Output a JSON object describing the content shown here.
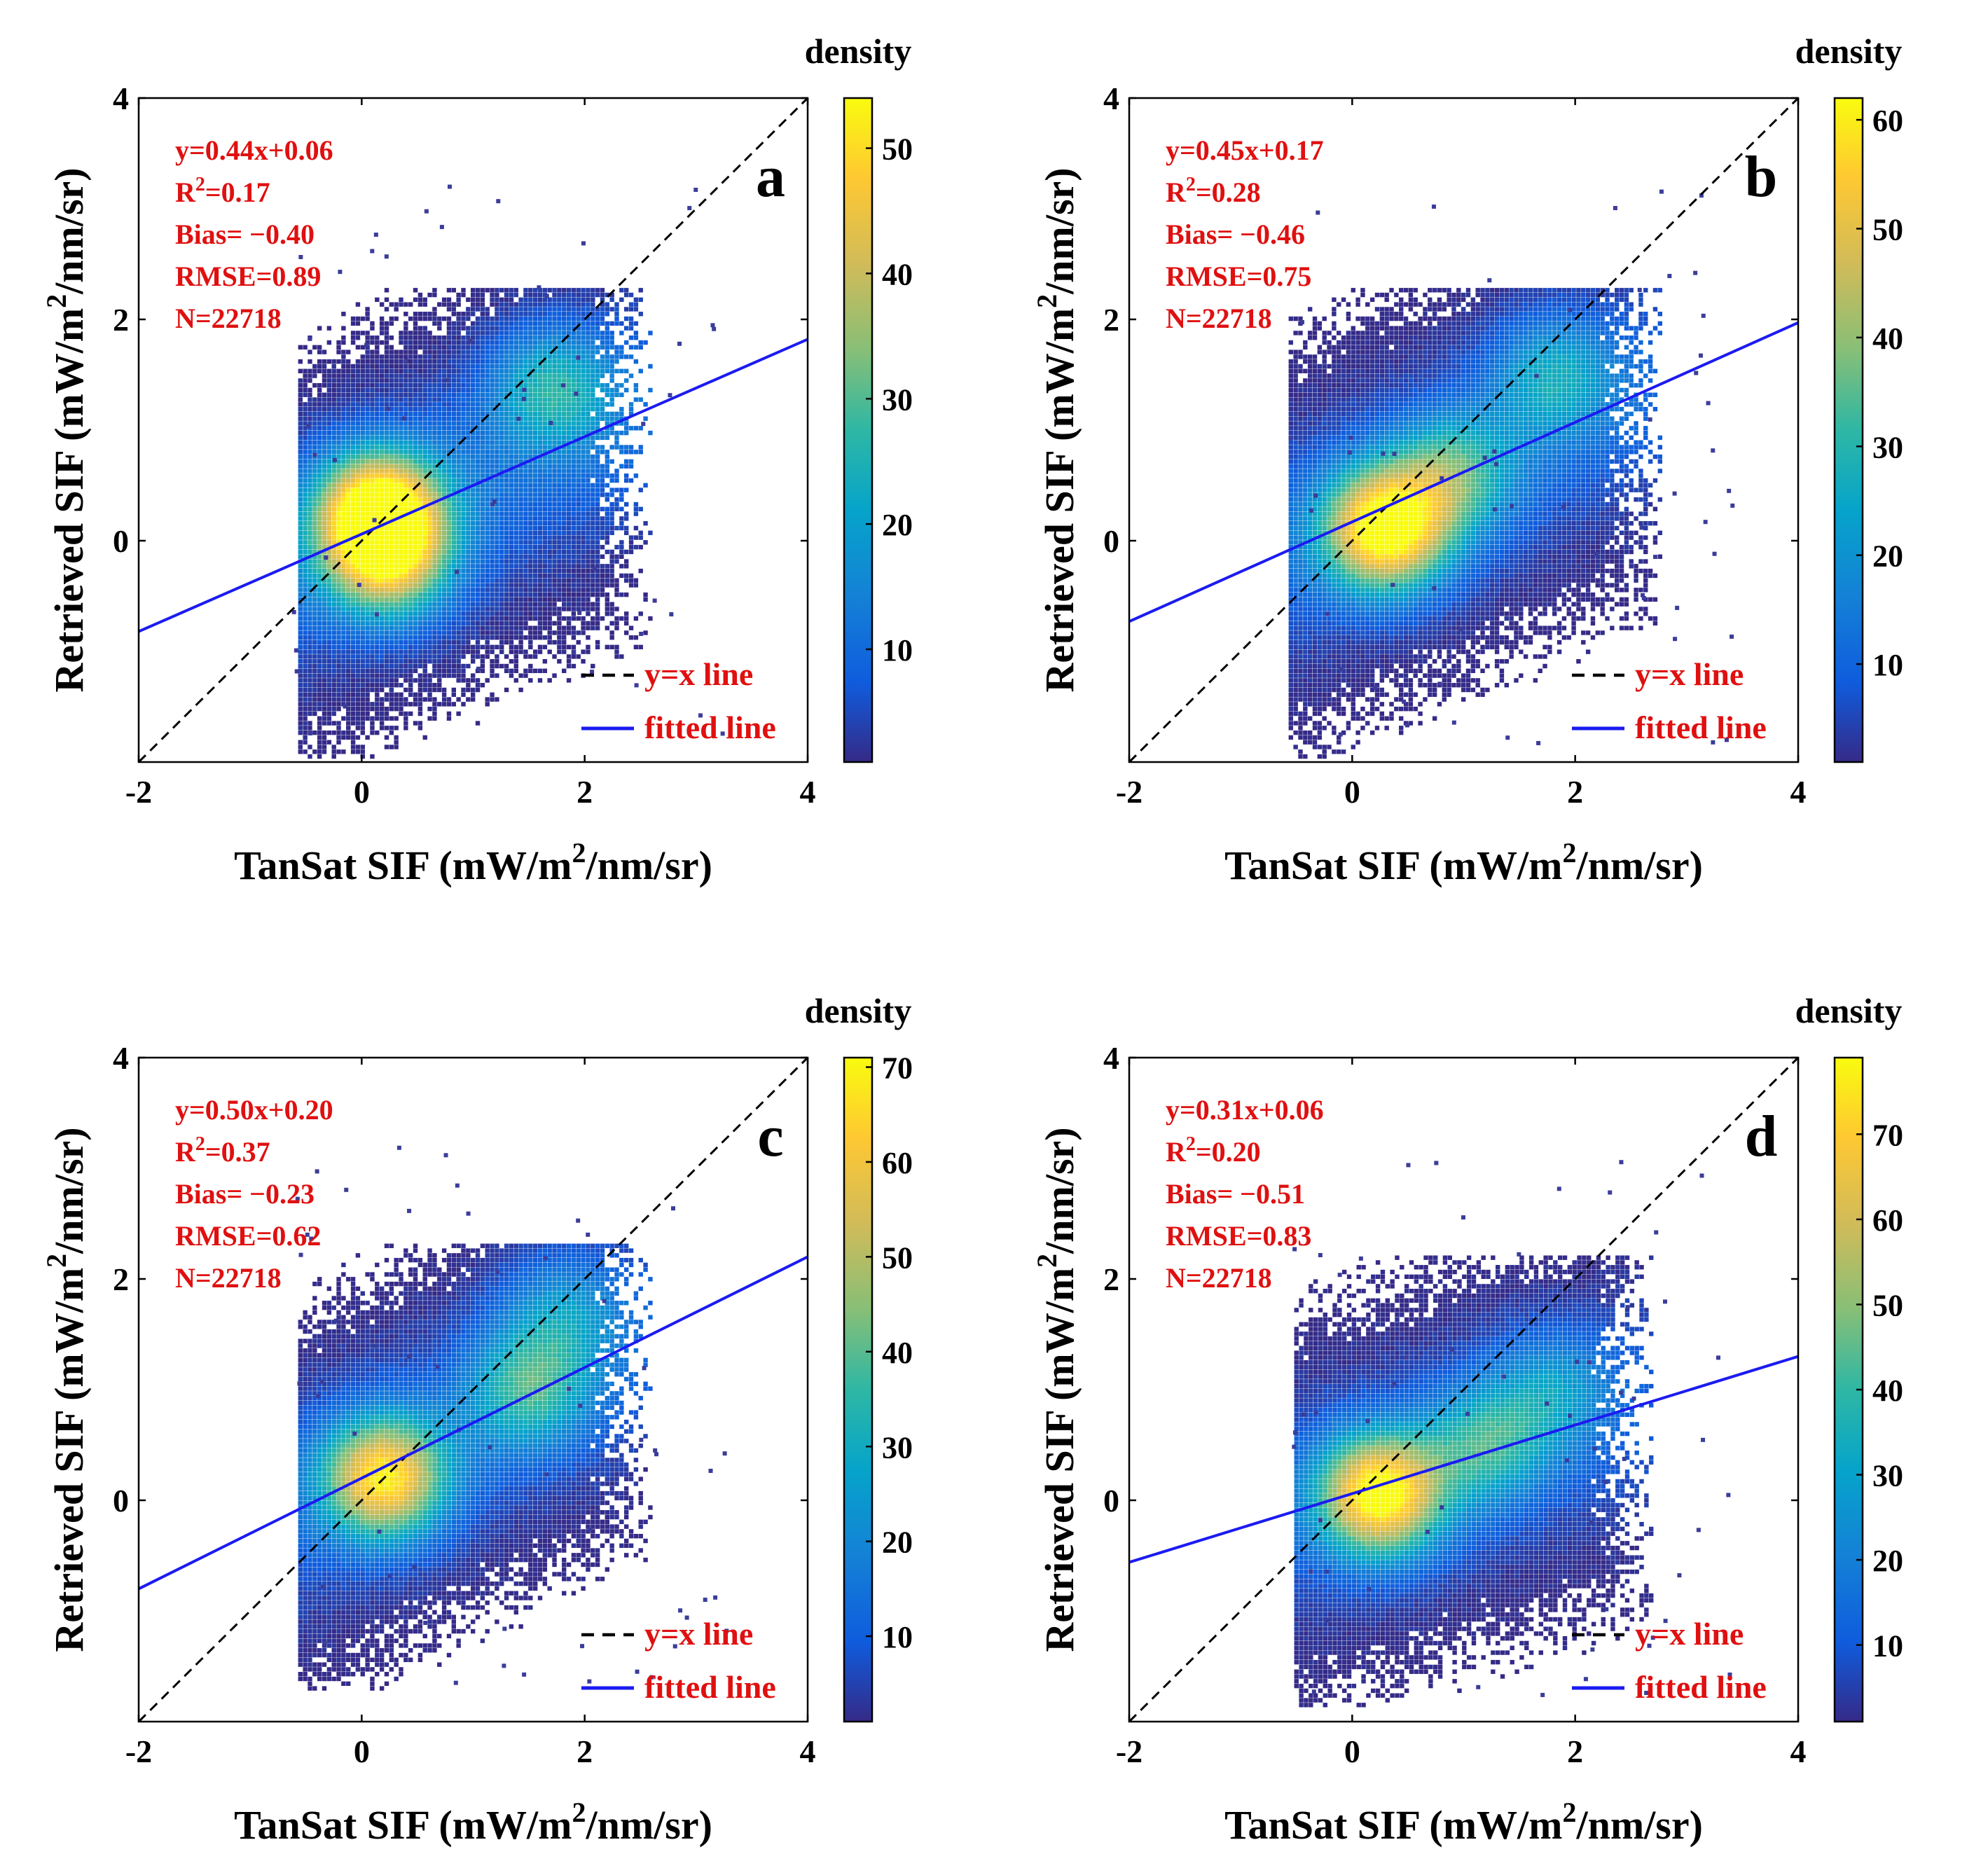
{
  "chart_data": [
    {
      "panel": "a",
      "type": "scatter",
      "subtype": "density-scatter",
      "xlabel_main": "TanSat SIF (mW/m",
      "xlabel_sup": "2",
      "xlabel_end": "/nm/sr)",
      "ylabel_main": "Retrieved SIF (mW/m",
      "ylabel_sup": "2",
      "ylabel_end": "/nm/sr)",
      "xlim": [
        -2,
        4
      ],
      "ylim": [
        -2,
        4
      ],
      "xticks": [
        "-2",
        "0",
        "2",
        "4"
      ],
      "yticks": [
        "0",
        "2",
        "4"
      ],
      "stats": {
        "equation": "y=0.44x+0.06",
        "r2_label": "R",
        "r2_sup": "2",
        "r2_value": "=0.17",
        "bias": "Bias= −0.40",
        "rmse": "RMSE=0.89",
        "n": "N=22718"
      },
      "fit": {
        "slope": 0.44,
        "intercept": 0.06
      },
      "legend": [
        "y=x line",
        "fitted line"
      ],
      "colorbar": {
        "label": "density",
        "min": 1,
        "max": 54,
        "ticks": [
          "10",
          "20",
          "30",
          "40",
          "50"
        ]
      },
      "cloud": {
        "x_range": [
          -0.55,
          2.6
        ],
        "y_range": [
          -1.95,
          2.3
        ],
        "hotspots": [
          [
            0.15,
            0.25,
            54
          ],
          [
            0.25,
            -0.2,
            30
          ],
          [
            1.7,
            1.4,
            20
          ]
        ]
      }
    },
    {
      "panel": "b",
      "type": "scatter",
      "subtype": "density-scatter",
      "xlabel_main": "TanSat SIF (mW/m",
      "xlabel_sup": "2",
      "xlabel_end": "/nm/sr)",
      "ylabel_main": "Retrieved SIF (mW/m",
      "ylabel_sup": "2",
      "ylabel_end": "/nm/sr)",
      "xlim": [
        -2,
        4
      ],
      "ylim": [
        -2,
        4
      ],
      "xticks": [
        "-2",
        "0",
        "2",
        "4"
      ],
      "yticks": [
        "0",
        "2",
        "4"
      ],
      "stats": {
        "equation": "y=0.45x+0.17",
        "r2_label": "R",
        "r2_sup": "2",
        "r2_value": "=0.28",
        "bias": "Bias= −0.46",
        "rmse": "RMSE=0.75",
        "n": "N=22718"
      },
      "fit": {
        "slope": 0.45,
        "intercept": 0.17
      },
      "legend": [
        "y=x line",
        "fitted line"
      ],
      "colorbar": {
        "label": "density",
        "min": 1,
        "max": 62,
        "ticks": [
          "10",
          "20",
          "30",
          "40",
          "50",
          "60"
        ]
      },
      "cloud": {
        "x_range": [
          -0.55,
          2.8
        ],
        "y_range": [
          -1.95,
          2.3
        ],
        "hotspots": [
          [
            0.3,
            0.1,
            60
          ],
          [
            1.8,
            1.5,
            20
          ],
          [
            0.9,
            0.6,
            25
          ]
        ]
      }
    },
    {
      "panel": "c",
      "type": "scatter",
      "subtype": "density-scatter",
      "xlabel_main": "TanSat SIF (mW/m",
      "xlabel_sup": "2",
      "xlabel_end": "/nm/sr)",
      "ylabel_main": "Retrieved SIF (mW/m",
      "ylabel_sup": "2",
      "ylabel_end": "/nm/sr)",
      "xlim": [
        -2,
        4
      ],
      "ylim": [
        -2,
        4
      ],
      "xticks": [
        "-2",
        "0",
        "2",
        "4"
      ],
      "yticks": [
        "0",
        "2",
        "4"
      ],
      "stats": {
        "equation": "y=0.50x+0.20",
        "r2_label": "R",
        "r2_sup": "2",
        "r2_value": "=0.37",
        "bias": "Bias= −0.23",
        "rmse": "RMSE=0.62",
        "n": "N=22718"
      },
      "fit": {
        "slope": 0.5,
        "intercept": 0.2
      },
      "legend": [
        "y=x line",
        "fitted line"
      ],
      "colorbar": {
        "label": "density",
        "min": 1,
        "max": 71,
        "ticks": [
          "10",
          "20",
          "30",
          "40",
          "50",
          "60",
          "70"
        ]
      },
      "cloud": {
        "x_range": [
          -0.55,
          2.6
        ],
        "y_range": [
          -1.7,
          2.3
        ],
        "hotspots": [
          [
            0.2,
            0.2,
            60
          ],
          [
            1.5,
            1.0,
            28
          ],
          [
            1.8,
            1.7,
            18
          ]
        ]
      }
    },
    {
      "panel": "d",
      "type": "scatter",
      "subtype": "density-scatter",
      "xlabel_main": "TanSat SIF (mW/m",
      "xlabel_sup": "2",
      "xlabel_end": "/nm/sr)",
      "ylabel_main": "Retrieved SIF (mW/m",
      "ylabel_sup": "2",
      "ylabel_end": "/nm/sr)",
      "xlim": [
        -2,
        4
      ],
      "ylim": [
        -2,
        4
      ],
      "xticks": [
        "-2",
        "0",
        "2",
        "4"
      ],
      "yticks": [
        "0",
        "2",
        "4"
      ],
      "stats": {
        "equation": "y=0.31x+0.06",
        "r2_label": "R",
        "r2_sup": "2",
        "r2_value": "=0.20",
        "bias": "Bias= −0.51",
        "rmse": "RMSE=0.83",
        "n": "N=22718"
      },
      "fit": {
        "slope": 0.31,
        "intercept": 0.06
      },
      "legend": [
        "y=x line",
        "fitted line"
      ],
      "colorbar": {
        "label": "density",
        "min": 1,
        "max": 79,
        "ticks": [
          "10",
          "20",
          "30",
          "40",
          "50",
          "60",
          "70"
        ]
      },
      "cloud": {
        "x_range": [
          -0.5,
          2.7
        ],
        "y_range": [
          -1.85,
          2.2
        ],
        "hotspots": [
          [
            0.25,
            0.05,
            75
          ],
          [
            1.2,
            0.5,
            30
          ],
          [
            1.8,
            1.0,
            20
          ]
        ]
      }
    }
  ]
}
